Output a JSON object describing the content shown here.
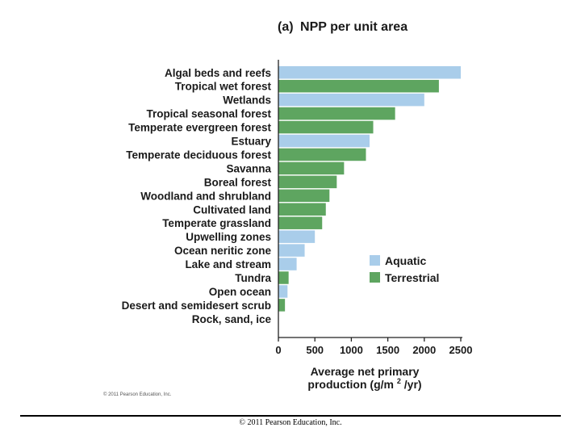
{
  "chart_data": {
    "type": "bar",
    "orientation": "horizontal",
    "title_prefix": "(a)",
    "title": "NPP per unit area",
    "xlabel_line1": "Average net primary",
    "xlabel_line2_pre": "production (g/m",
    "xlabel_sup": "2",
    "xlabel_line2_post": "/yr)",
    "xlim": [
      0,
      2500
    ],
    "xticks": [
      0,
      500,
      1000,
      1500,
      2000,
      2500
    ],
    "legend_position": "right",
    "colors": {
      "Aquatic": "#a9cdea",
      "Terrestrial": "#5ea560"
    },
    "categories": [
      "Algal beds and reefs",
      "Tropical wet forest",
      "Wetlands",
      "Tropical seasonal forest",
      "Temperate evergreen forest",
      "Estuary",
      "Temperate deciduous forest",
      "Savanna",
      "Boreal forest",
      "Woodland and shrubland",
      "Cultivated land",
      "Temperate grassland",
      "Upwelling zones",
      "Ocean neritic zone",
      "Lake and stream",
      "Tundra",
      "Open ocean",
      "Desert and semidesert scrub",
      "Rock, sand, ice"
    ],
    "values": [
      2500,
      2200,
      2000,
      1600,
      1300,
      1250,
      1200,
      900,
      800,
      700,
      650,
      600,
      500,
      360,
      250,
      140,
      125,
      90,
      3
    ],
    "groups": [
      "Aquatic",
      "Terrestrial",
      "Aquatic",
      "Terrestrial",
      "Terrestrial",
      "Aquatic",
      "Terrestrial",
      "Terrestrial",
      "Terrestrial",
      "Terrestrial",
      "Terrestrial",
      "Terrestrial",
      "Aquatic",
      "Aquatic",
      "Aquatic",
      "Terrestrial",
      "Aquatic",
      "Terrestrial",
      "Terrestrial"
    ],
    "legend": [
      "Aquatic",
      "Terrestrial"
    ]
  },
  "credit": "© 2011 Pearson Education, Inc.",
  "footer": "© 2011 Pearson Education, Inc."
}
